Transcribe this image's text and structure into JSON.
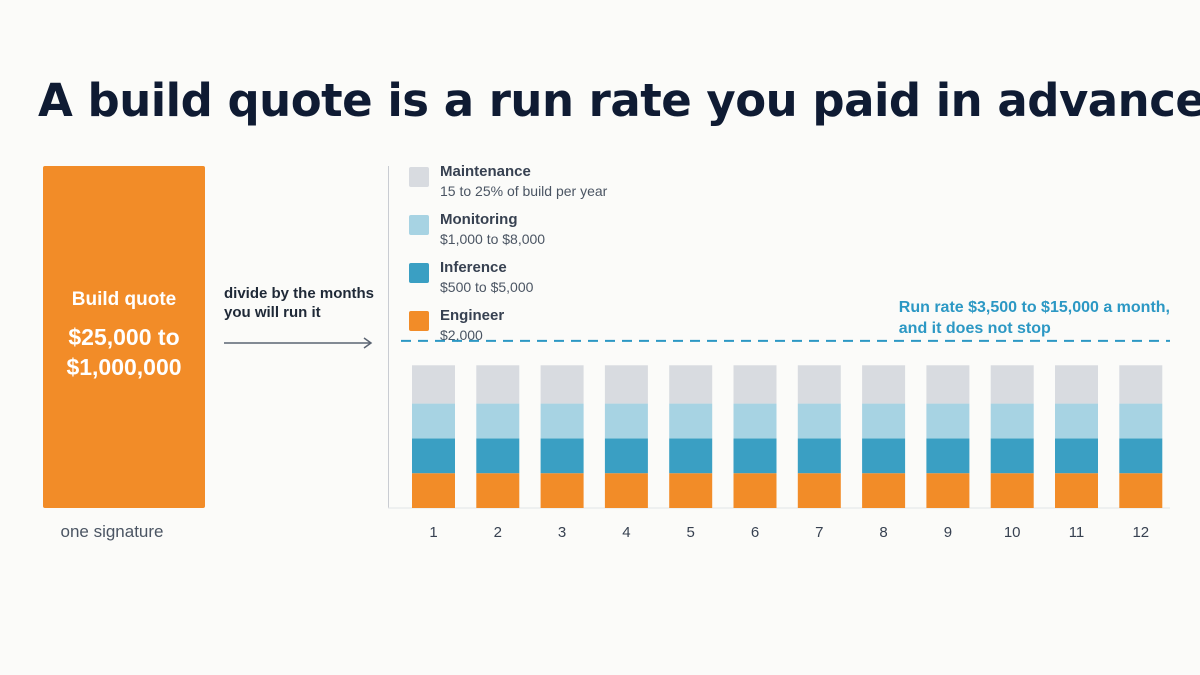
{
  "title": "A build quote is a run rate you paid in advance",
  "build": {
    "label": "Build quote",
    "range": "$25,000 to\n$1,000,000",
    "footer": "one signature"
  },
  "divide_note": "divide by the months\nyou will run it",
  "run_rate_note": "Run rate $3,500 to $15,000 a month,\nand it does not stop",
  "colors": {
    "build": "#f28c28",
    "engineer": "#f28c28",
    "inference": "#3a9fc3",
    "monitoring": "#a7d3e3",
    "maintenance": "#d8dbe0",
    "run_rate_line": "#2c98c4"
  },
  "chart_data": {
    "type": "bar",
    "stacked": true,
    "categories": [
      "1",
      "2",
      "3",
      "4",
      "5",
      "6",
      "7",
      "8",
      "9",
      "10",
      "11",
      "12"
    ],
    "series": [
      {
        "name": "Engineer",
        "detail": "$2,000",
        "color": "#f28c28",
        "values": [
          1,
          1,
          1,
          1,
          1,
          1,
          1,
          1,
          1,
          1,
          1,
          1
        ]
      },
      {
        "name": "Inference",
        "detail": "$500 to $5,000",
        "color": "#3a9fc3",
        "values": [
          1,
          1,
          1,
          1,
          1,
          1,
          1,
          1,
          1,
          1,
          1,
          1
        ]
      },
      {
        "name": "Monitoring",
        "detail": "$1,000 to $8,000",
        "color": "#a7d3e3",
        "values": [
          1,
          1,
          1,
          1,
          1,
          1,
          1,
          1,
          1,
          1,
          1,
          1
        ]
      },
      {
        "name": "Maintenance",
        "detail": "15 to 25% of build per year",
        "color": "#d8dbe0",
        "values": [
          1.1,
          1.1,
          1.1,
          1.1,
          1.1,
          1.1,
          1.1,
          1.1,
          1.1,
          1.1,
          1.1,
          1.1
        ]
      }
    ],
    "reference_line": {
      "value": 4.8,
      "style": "dashed"
    },
    "ylim": [
      0,
      5.2
    ],
    "grid": false,
    "legend": "top-left"
  }
}
